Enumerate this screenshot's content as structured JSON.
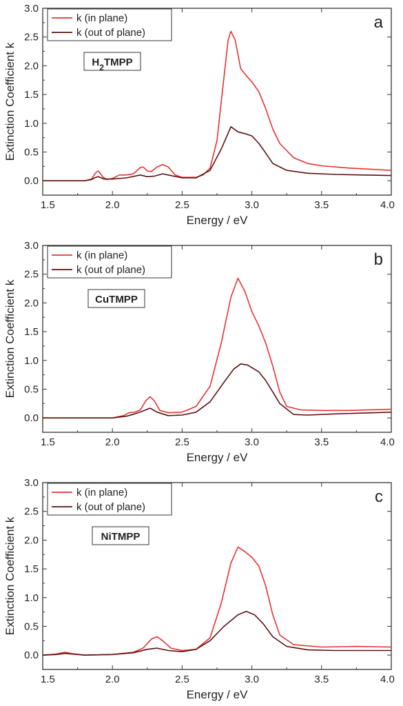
{
  "chart_data": [
    {
      "type": "line",
      "panel_label": "a",
      "sample_label": {
        "main": "H",
        "sub": "2",
        "rest": "TMPP"
      },
      "xlabel": "Energy / eV",
      "ylabel": "Extinction Coefficient k",
      "xlim": [
        1.5,
        4.0
      ],
      "ylim": [
        -0.25,
        3.0
      ],
      "xticks": [
        "1.5",
        "2.0",
        "2.5",
        "3.0",
        "3.5",
        "4.0"
      ],
      "yticks": [
        "0.0",
        "0.5",
        "1.0",
        "1.5",
        "2.0",
        "2.5",
        "3.0"
      ],
      "legend_position": "top-left",
      "series": [
        {
          "name": "k (in plane)",
          "color": "#e8302f",
          "points": [
            [
              1.5,
              0.0
            ],
            [
              1.8,
              0.0
            ],
            [
              1.85,
              0.03
            ],
            [
              1.88,
              0.14
            ],
            [
              1.9,
              0.17
            ],
            [
              1.93,
              0.07
            ],
            [
              1.96,
              0.02
            ],
            [
              2.0,
              0.04
            ],
            [
              2.05,
              0.1
            ],
            [
              2.1,
              0.1
            ],
            [
              2.15,
              0.12
            ],
            [
              2.2,
              0.23
            ],
            [
              2.22,
              0.24
            ],
            [
              2.25,
              0.17
            ],
            [
              2.28,
              0.16
            ],
            [
              2.32,
              0.24
            ],
            [
              2.36,
              0.28
            ],
            [
              2.4,
              0.24
            ],
            [
              2.45,
              0.1
            ],
            [
              2.5,
              0.06
            ],
            [
              2.6,
              0.06
            ],
            [
              2.65,
              0.1
            ],
            [
              2.7,
              0.22
            ],
            [
              2.75,
              0.7
            ],
            [
              2.8,
              1.8
            ],
            [
              2.83,
              2.45
            ],
            [
              2.85,
              2.6
            ],
            [
              2.88,
              2.45
            ],
            [
              2.92,
              1.95
            ],
            [
              2.97,
              1.8
            ],
            [
              3.0,
              1.72
            ],
            [
              3.05,
              1.55
            ],
            [
              3.1,
              1.25
            ],
            [
              3.15,
              0.9
            ],
            [
              3.2,
              0.65
            ],
            [
              3.3,
              0.4
            ],
            [
              3.4,
              0.3
            ],
            [
              3.5,
              0.26
            ],
            [
              3.7,
              0.22
            ],
            [
              4.0,
              0.18
            ]
          ]
        },
        {
          "name": "k (out of plane)",
          "color": "#5a1010",
          "points": [
            [
              1.5,
              0.0
            ],
            [
              1.8,
              0.0
            ],
            [
              1.85,
              0.02
            ],
            [
              1.88,
              0.06
            ],
            [
              1.9,
              0.07
            ],
            [
              1.94,
              0.03
            ],
            [
              2.0,
              0.03
            ],
            [
              2.1,
              0.05
            ],
            [
              2.2,
              0.1
            ],
            [
              2.25,
              0.07
            ],
            [
              2.3,
              0.08
            ],
            [
              2.36,
              0.12
            ],
            [
              2.4,
              0.1
            ],
            [
              2.5,
              0.05
            ],
            [
              2.6,
              0.05
            ],
            [
              2.7,
              0.18
            ],
            [
              2.78,
              0.55
            ],
            [
              2.85,
              0.94
            ],
            [
              2.9,
              0.85
            ],
            [
              2.95,
              0.82
            ],
            [
              3.0,
              0.78
            ],
            [
              3.05,
              0.65
            ],
            [
              3.1,
              0.48
            ],
            [
              3.15,
              0.3
            ],
            [
              3.25,
              0.18
            ],
            [
              3.4,
              0.13
            ],
            [
              3.6,
              0.11
            ],
            [
              4.0,
              0.09
            ]
          ]
        }
      ]
    },
    {
      "type": "line",
      "panel_label": "b",
      "sample_label": {
        "main": "CuTMPP",
        "sub": "",
        "rest": ""
      },
      "xlabel": "Energy / eV",
      "ylabel": "Extinction Coefficient k",
      "xlim": [
        1.5,
        4.0
      ],
      "ylim": [
        -0.25,
        3.0
      ],
      "xticks": [
        "1.5",
        "2.0",
        "2.5",
        "3.0",
        "3.5",
        "4.0"
      ],
      "yticks": [
        "0.0",
        "0.5",
        "1.0",
        "1.5",
        "2.0",
        "2.5",
        "3.0"
      ],
      "legend_position": "top-left",
      "series": [
        {
          "name": "k (in plane)",
          "color": "#e8302f",
          "points": [
            [
              1.5,
              0.0
            ],
            [
              2.0,
              0.0
            ],
            [
              2.08,
              0.04
            ],
            [
              2.12,
              0.09
            ],
            [
              2.16,
              0.1
            ],
            [
              2.2,
              0.14
            ],
            [
              2.24,
              0.3
            ],
            [
              2.27,
              0.37
            ],
            [
              2.3,
              0.3
            ],
            [
              2.34,
              0.13
            ],
            [
              2.4,
              0.09
            ],
            [
              2.5,
              0.1
            ],
            [
              2.6,
              0.2
            ],
            [
              2.7,
              0.55
            ],
            [
              2.78,
              1.3
            ],
            [
              2.85,
              2.1
            ],
            [
              2.9,
              2.43
            ],
            [
              2.95,
              2.2
            ],
            [
              3.0,
              1.85
            ],
            [
              3.05,
              1.6
            ],
            [
              3.1,
              1.3
            ],
            [
              3.15,
              0.9
            ],
            [
              3.2,
              0.45
            ],
            [
              3.25,
              0.2
            ],
            [
              3.35,
              0.14
            ],
            [
              3.5,
              0.13
            ],
            [
              3.7,
              0.13
            ],
            [
              4.0,
              0.15
            ]
          ]
        },
        {
          "name": "k (out of plane)",
          "color": "#5a1010",
          "points": [
            [
              1.5,
              0.0
            ],
            [
              2.0,
              0.0
            ],
            [
              2.1,
              0.03
            ],
            [
              2.16,
              0.07
            ],
            [
              2.22,
              0.12
            ],
            [
              2.27,
              0.17
            ],
            [
              2.32,
              0.1
            ],
            [
              2.4,
              0.04
            ],
            [
              2.5,
              0.05
            ],
            [
              2.6,
              0.1
            ],
            [
              2.7,
              0.28
            ],
            [
              2.8,
              0.62
            ],
            [
              2.87,
              0.85
            ],
            [
              2.92,
              0.94
            ],
            [
              2.97,
              0.92
            ],
            [
              3.05,
              0.8
            ],
            [
              3.1,
              0.65
            ],
            [
              3.15,
              0.45
            ],
            [
              3.2,
              0.25
            ],
            [
              3.3,
              0.06
            ],
            [
              3.4,
              0.05
            ],
            [
              3.6,
              0.07
            ],
            [
              4.0,
              0.1
            ]
          ]
        }
      ]
    },
    {
      "type": "line",
      "panel_label": "c",
      "sample_label": {
        "main": "NiTMPP",
        "sub": "",
        "rest": ""
      },
      "xlabel": "Energy / eV",
      "ylabel": "Extinction Coefficient k",
      "xlim": [
        1.5,
        4.0
      ],
      "ylim": [
        -0.25,
        3.0
      ],
      "xticks": [
        "1.5",
        "2.0",
        "2.5",
        "3.0",
        "3.5",
        "4.0"
      ],
      "yticks": [
        "0.0",
        "0.5",
        "1.0",
        "1.5",
        "2.0",
        "2.5",
        "3.0"
      ],
      "legend_position": "top-left",
      "series": [
        {
          "name": "k (in plane)",
          "color": "#e8302f",
          "points": [
            [
              1.5,
              0.0
            ],
            [
              1.6,
              0.02
            ],
            [
              1.66,
              0.05
            ],
            [
              1.7,
              0.03
            ],
            [
              1.8,
              0.0
            ],
            [
              2.0,
              0.01
            ],
            [
              2.15,
              0.05
            ],
            [
              2.22,
              0.12
            ],
            [
              2.28,
              0.28
            ],
            [
              2.32,
              0.32
            ],
            [
              2.36,
              0.25
            ],
            [
              2.42,
              0.12
            ],
            [
              2.5,
              0.08
            ],
            [
              2.6,
              0.1
            ],
            [
              2.7,
              0.3
            ],
            [
              2.78,
              0.9
            ],
            [
              2.85,
              1.6
            ],
            [
              2.9,
              1.88
            ],
            [
              2.95,
              1.8
            ],
            [
              3.0,
              1.7
            ],
            [
              3.05,
              1.55
            ],
            [
              3.1,
              1.2
            ],
            [
              3.15,
              0.7
            ],
            [
              3.2,
              0.35
            ],
            [
              3.3,
              0.18
            ],
            [
              3.5,
              0.14
            ],
            [
              3.75,
              0.15
            ],
            [
              4.0,
              0.14
            ]
          ]
        },
        {
          "name": "k (out of plane)",
          "color": "#5a1010",
          "points": [
            [
              1.5,
              0.0
            ],
            [
              1.6,
              0.01
            ],
            [
              1.66,
              0.03
            ],
            [
              1.7,
              0.02
            ],
            [
              1.8,
              0.0
            ],
            [
              2.0,
              0.01
            ],
            [
              2.15,
              0.04
            ],
            [
              2.25,
              0.1
            ],
            [
              2.32,
              0.12
            ],
            [
              2.4,
              0.08
            ],
            [
              2.5,
              0.06
            ],
            [
              2.6,
              0.1
            ],
            [
              2.7,
              0.25
            ],
            [
              2.8,
              0.5
            ],
            [
              2.9,
              0.7
            ],
            [
              2.96,
              0.76
            ],
            [
              3.02,
              0.7
            ],
            [
              3.08,
              0.55
            ],
            [
              3.15,
              0.32
            ],
            [
              3.25,
              0.15
            ],
            [
              3.4,
              0.09
            ],
            [
              3.6,
              0.08
            ],
            [
              4.0,
              0.08
            ]
          ]
        }
      ]
    }
  ]
}
